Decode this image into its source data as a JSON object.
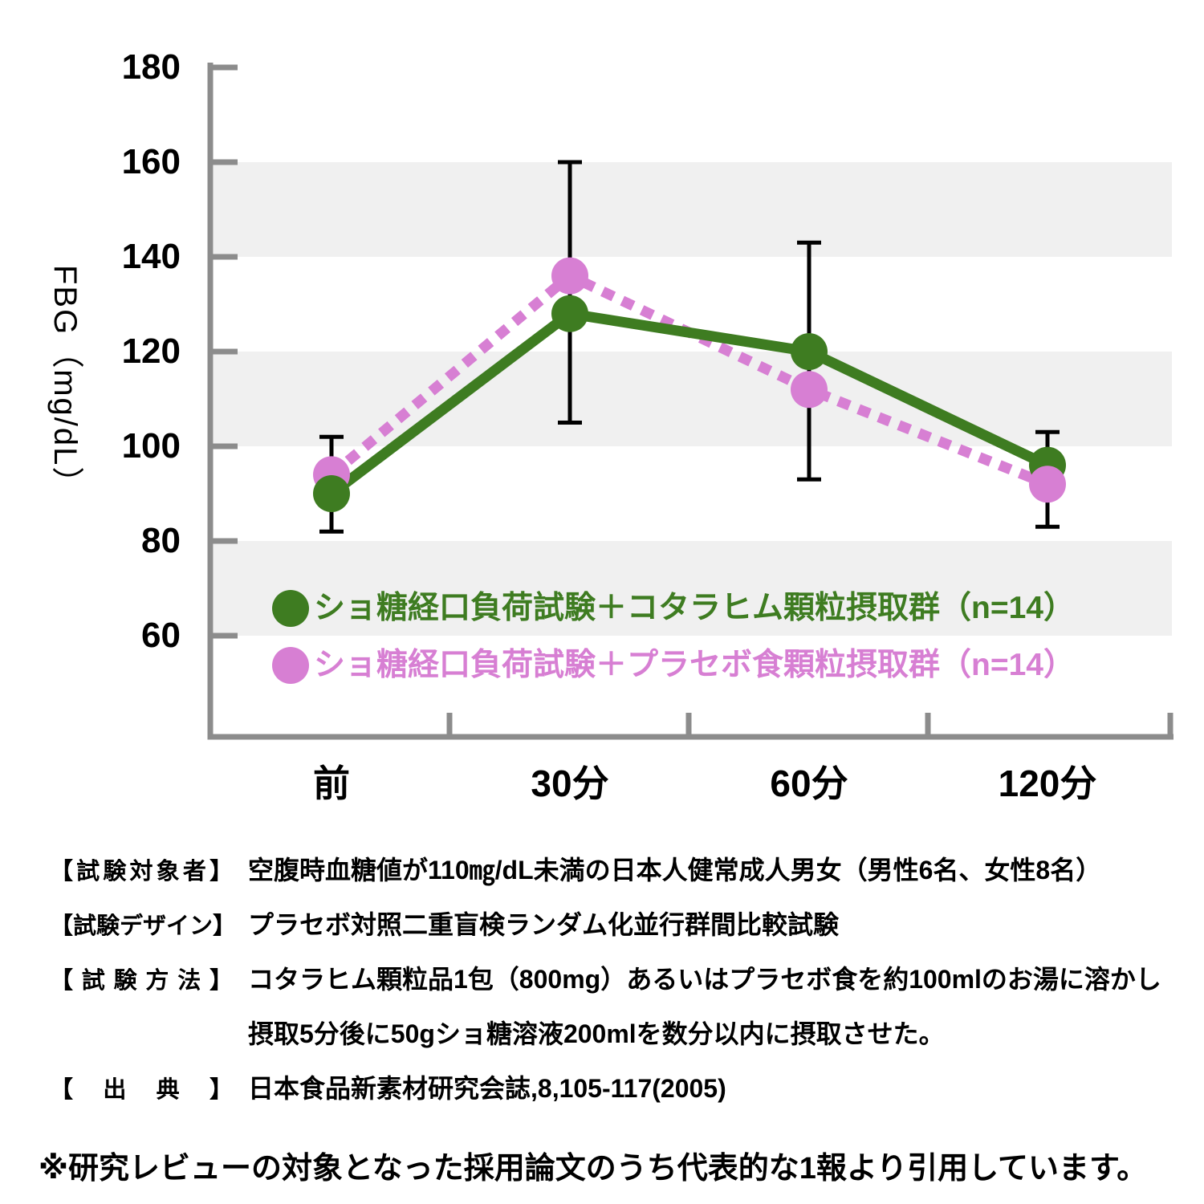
{
  "chart_data": {
    "type": "line",
    "title": "",
    "ylabel": "FBG（mg/dL）",
    "categories": [
      "前",
      "30分",
      "60分",
      "120分"
    ],
    "y_ticks": [
      180,
      160,
      140,
      120,
      100,
      80,
      60
    ],
    "ylim": [
      60,
      180
    ],
    "shaded_bands": [
      [
        160,
        140
      ],
      [
        120,
        100
      ],
      [
        80,
        60
      ]
    ],
    "band_color": "#f0f0f0",
    "axis_color": "#8c8c8c",
    "grid": "alternating horizontal shaded bands, no gridlines",
    "legend_position": "inside plot, bottom left",
    "series": [
      {
        "name": "ショ糖経口負荷試験＋コタラヒム顆粒摂取群（n=14）",
        "color": "#3e7c21",
        "style": "solid",
        "marker": "circle",
        "values": [
          90,
          128,
          120,
          96
        ]
      },
      {
        "name": "ショ糖経口負荷試験＋プラセボ食顆粒摂取群（n=14）",
        "color": "#d77fd3",
        "style": "dashed",
        "marker": "circle",
        "values": [
          94,
          136,
          112,
          92
        ]
      }
    ],
    "error_bars": [
      {
        "category": "前",
        "high": 102,
        "low": 82
      },
      {
        "category": "30分",
        "high": 160,
        "low": 105
      },
      {
        "category": "60分",
        "high": 143,
        "low": 93
      },
      {
        "category": "120分",
        "high": 103,
        "low": 83
      }
    ],
    "error_bar_color": "#000000"
  },
  "footer": {
    "rows": [
      {
        "label": "【試験対象者】",
        "text": "空腹時血糖値が110㎎/dL未満の日本人健常成人男女（男性6名、女性8名）"
      },
      {
        "label": "【試験デザイン】",
        "text": "プラセボ対照二重盲検ランダム化並行群間比較試験"
      },
      {
        "label": "【試験方法】",
        "text": "コタラヒム顆粒品1包（800mg）あるいはプラセボ食を約100mlのお湯に溶かし"
      },
      {
        "label": "",
        "text": "摂取5分後に50gショ糖溶液200mlを数分以内に摂取させた。"
      },
      {
        "label": "【出典】",
        "text": "日本食品新素材研究会誌,8,105-117(2005)"
      }
    ],
    "footnote": "※研究レビューの対象となった採用論文のうち代表的な1報より引用しています。"
  }
}
